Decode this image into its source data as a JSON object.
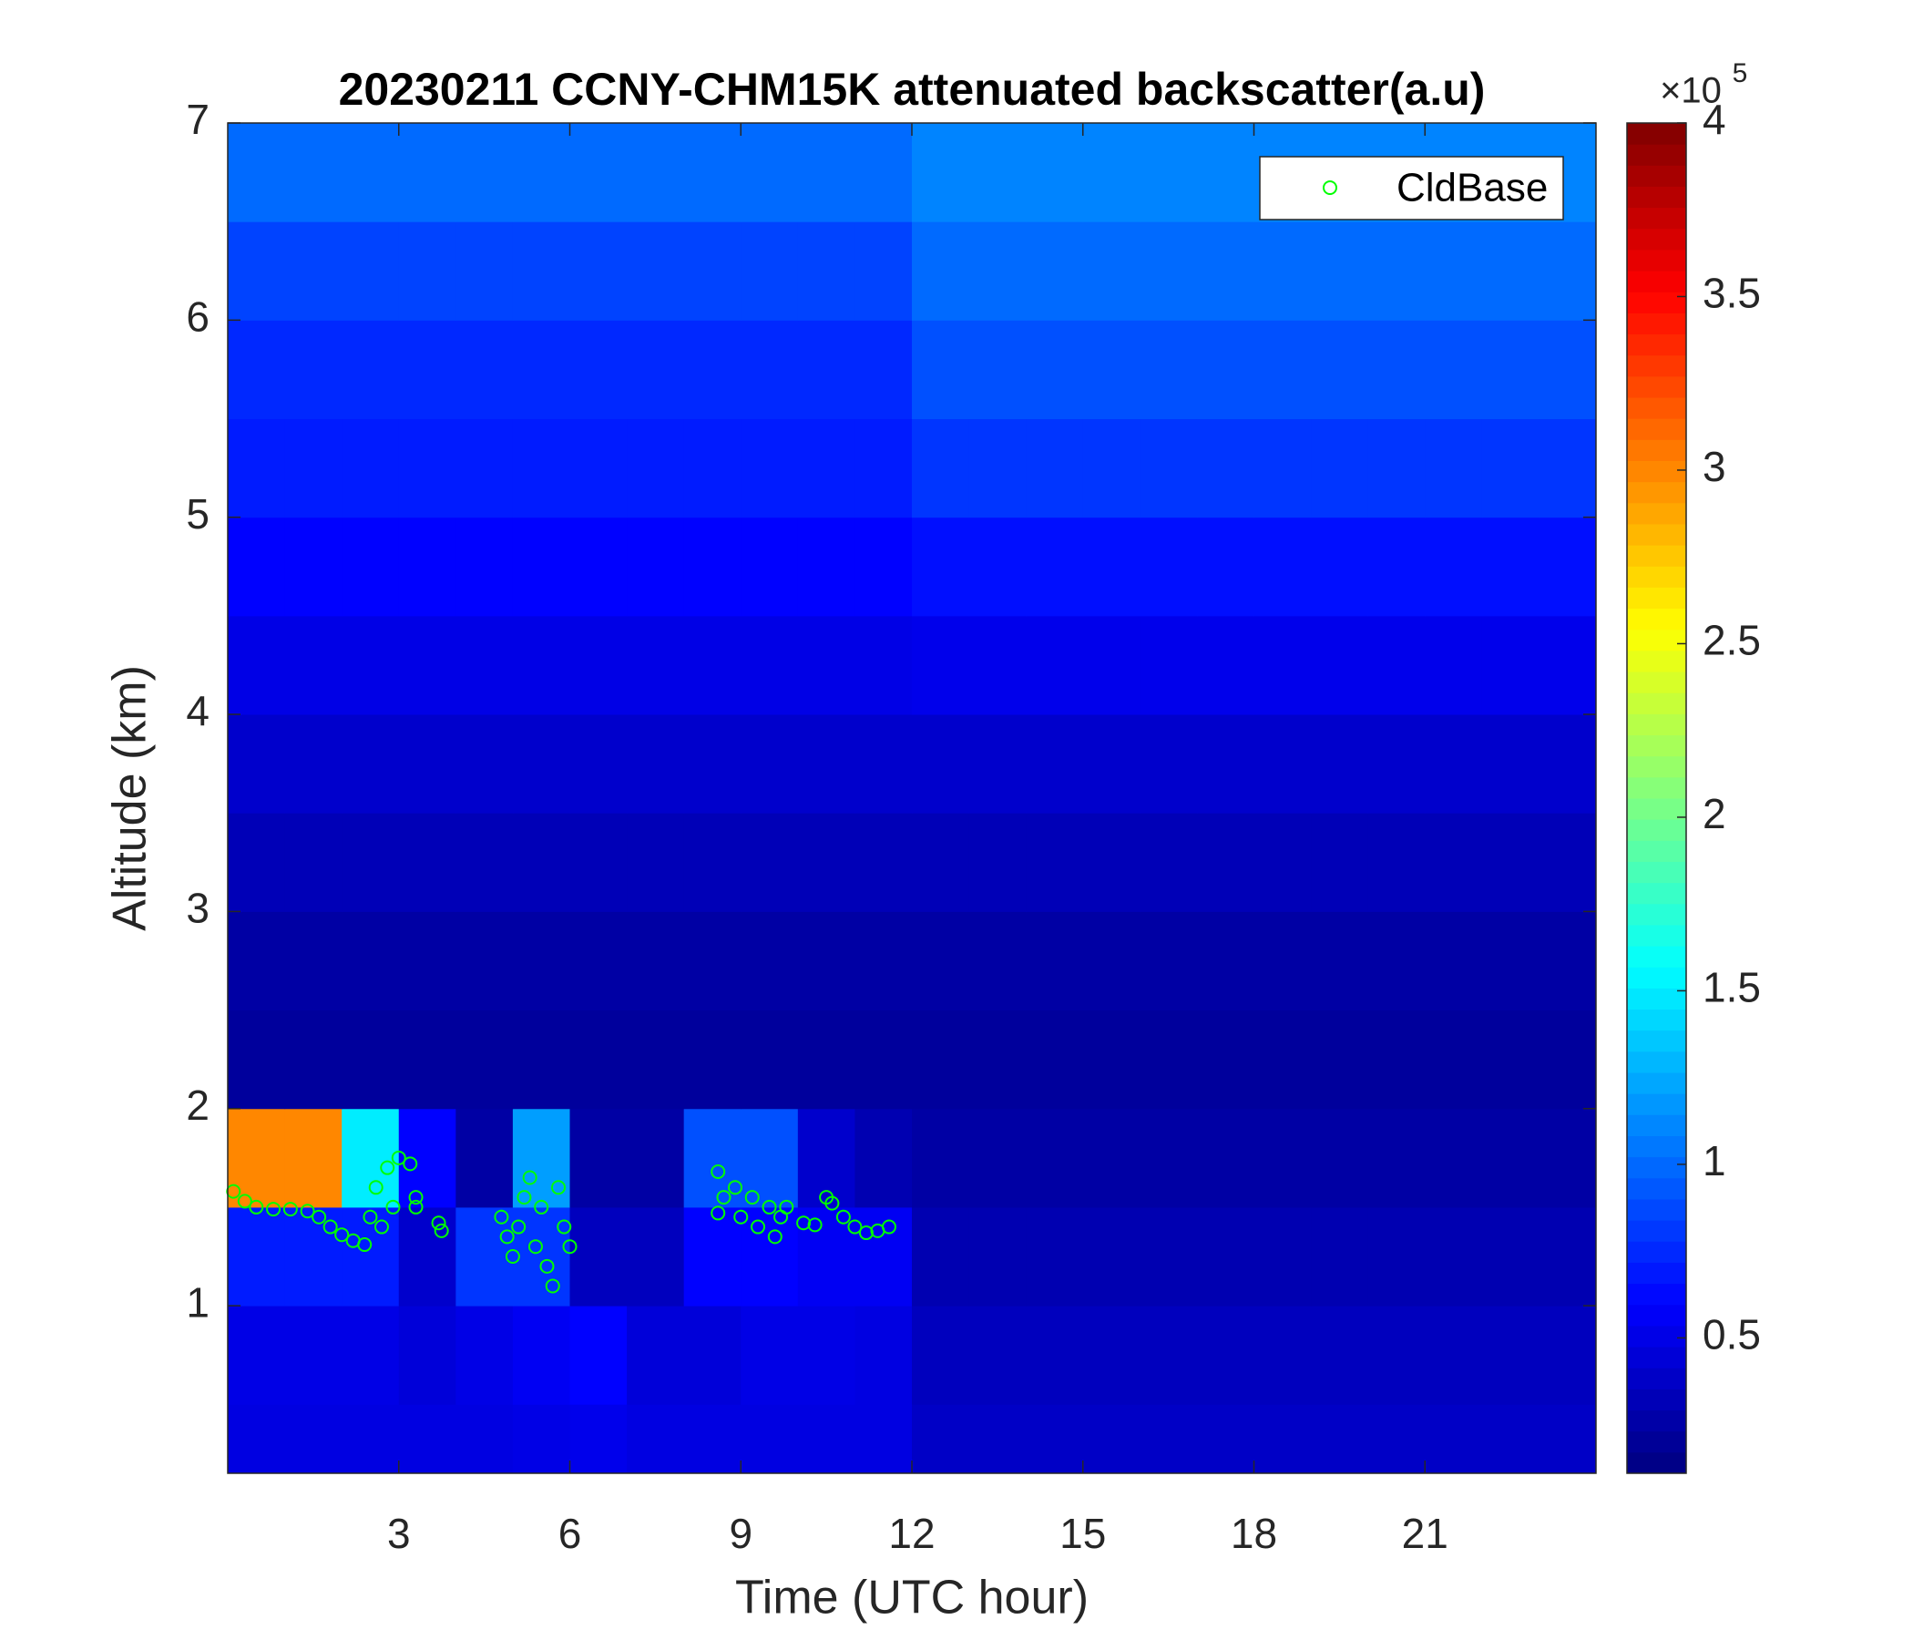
{
  "chart_data": {
    "type": "heatmap",
    "title": "20230211 CCNY-CHM15K attenuated backscatter(a.u)",
    "x_label": "Time (UTC hour)",
    "y_label": "Altitude (km)",
    "xlim": [
      0,
      24
    ],
    "ylim": [
      0.15,
      7
    ],
    "xticks": [
      3,
      6,
      9,
      12,
      15,
      18,
      21
    ],
    "yticks": [
      1,
      2,
      3,
      4,
      5,
      6,
      7
    ],
    "colormap": "jet",
    "clim": [
      11000,
      400000
    ],
    "colorbar_ticks": [
      {
        "value": 50000,
        "label": "0.5"
      },
      {
        "value": 100000,
        "label": "1"
      },
      {
        "value": 150000,
        "label": "1.5"
      },
      {
        "value": 200000,
        "label": "2"
      },
      {
        "value": 250000,
        "label": "2.5"
      },
      {
        "value": 300000,
        "label": "3"
      },
      {
        "value": 350000,
        "label": "3.5"
      },
      {
        "value": 400000,
        "label": "4"
      }
    ],
    "colorbar_multiplier": {
      "base": "×10",
      "exponent": "5"
    },
    "x_edges": [
      0,
      1,
      2,
      3,
      4,
      5,
      6,
      7,
      8,
      9,
      10,
      11,
      12,
      13,
      14,
      15,
      16,
      17,
      18,
      19,
      20,
      21,
      22,
      23,
      24
    ],
    "y_edges": [
      0.15,
      0.5,
      1,
      1.5,
      2,
      2.5,
      3,
      3.5,
      4,
      4.5,
      5,
      5.5,
      6,
      6.5,
      7
    ],
    "z": [
      [
        48000,
        48000,
        48000,
        48000,
        48000,
        50000,
        52000,
        48000,
        48000,
        48000,
        48000,
        48000,
        38000,
        38000,
        38000,
        38000,
        38000,
        38000,
        38000,
        38000,
        38000,
        38000,
        38000,
        38000
      ],
      [
        50000,
        50000,
        50000,
        45000,
        50000,
        55000,
        60000,
        45000,
        45000,
        50000,
        50000,
        48000,
        35000,
        35000,
        35000,
        35000,
        35000,
        35000,
        35000,
        35000,
        35000,
        35000,
        35000,
        35000
      ],
      [
        70000,
        70000,
        70000,
        40000,
        80000,
        80000,
        35000,
        35000,
        60000,
        60000,
        55000,
        55000,
        30000,
        30000,
        30000,
        30000,
        30000,
        30000,
        30000,
        30000,
        30000,
        30000,
        30000,
        30000
      ],
      [
        300000,
        300000,
        150000,
        60000,
        25000,
        120000,
        25000,
        25000,
        90000,
        90000,
        40000,
        30000,
        25000,
        25000,
        25000,
        25000,
        25000,
        25000,
        25000,
        25000,
        25000,
        25000,
        25000,
        25000
      ],
      [
        22000,
        22000,
        22000,
        22000,
        22000,
        22000,
        22000,
        22000,
        22000,
        22000,
        22000,
        22000,
        22000,
        22000,
        22000,
        22000,
        22000,
        22000,
        22000,
        22000,
        22000,
        22000,
        22000,
        22000
      ],
      [
        25000,
        25000,
        25000,
        25000,
        25000,
        25000,
        25000,
        25000,
        25000,
        25000,
        25000,
        25000,
        25000,
        25000,
        25000,
        25000,
        25000,
        25000,
        25000,
        25000,
        25000,
        25000,
        25000,
        25000
      ],
      [
        32000,
        32000,
        32000,
        32000,
        32000,
        32000,
        32000,
        32000,
        32000,
        32000,
        32000,
        32000,
        32000,
        32000,
        32000,
        32000,
        32000,
        32000,
        32000,
        32000,
        32000,
        32000,
        32000,
        32000
      ],
      [
        40000,
        40000,
        40000,
        40000,
        40000,
        40000,
        40000,
        40000,
        40000,
        40000,
        40000,
        40000,
        40000,
        40000,
        40000,
        40000,
        40000,
        40000,
        40000,
        40000,
        40000,
        40000,
        40000,
        40000
      ],
      [
        50000,
        50000,
        50000,
        50000,
        50000,
        50000,
        50000,
        50000,
        50000,
        50000,
        50000,
        50000,
        52000,
        52000,
        52000,
        52000,
        52000,
        52000,
        52000,
        52000,
        52000,
        52000,
        52000,
        52000
      ],
      [
        60000,
        60000,
        60000,
        60000,
        60000,
        60000,
        60000,
        60000,
        60000,
        60000,
        60000,
        60000,
        65000,
        65000,
        65000,
        65000,
        65000,
        65000,
        65000,
        65000,
        65000,
        65000,
        65000,
        65000
      ],
      [
        70000,
        70000,
        70000,
        70000,
        70000,
        70000,
        70000,
        70000,
        70000,
        70000,
        70000,
        70000,
        80000,
        80000,
        80000,
        80000,
        80000,
        80000,
        80000,
        80000,
        80000,
        80000,
        80000,
        80000
      ],
      [
        75000,
        75000,
        75000,
        75000,
        75000,
        75000,
        75000,
        75000,
        75000,
        75000,
        75000,
        75000,
        90000,
        90000,
        90000,
        90000,
        90000,
        90000,
        90000,
        90000,
        90000,
        90000,
        90000,
        90000
      ],
      [
        85000,
        85000,
        85000,
        85000,
        85000,
        85000,
        85000,
        85000,
        85000,
        85000,
        85000,
        85000,
        100000,
        100000,
        100000,
        100000,
        100000,
        100000,
        100000,
        100000,
        100000,
        100000,
        100000,
        100000
      ],
      [
        100000,
        100000,
        100000,
        100000,
        100000,
        100000,
        100000,
        100000,
        100000,
        100000,
        100000,
        100000,
        110000,
        110000,
        110000,
        110000,
        110000,
        110000,
        110000,
        110000,
        110000,
        110000,
        110000,
        110000
      ]
    ],
    "series": [
      {
        "name": "CldBase",
        "color": "#00ff00",
        "x": [
          0.1,
          0.3,
          0.5,
          0.8,
          1.1,
          1.4,
          1.6,
          1.8,
          2.0,
          2.2,
          2.4,
          2.5,
          2.6,
          2.8,
          3.0,
          3.2,
          3.3,
          2.7,
          2.9,
          3.3,
          3.7,
          3.75,
          4.8,
          4.9,
          5.0,
          5.1,
          5.2,
          5.3,
          5.4,
          5.5,
          5.6,
          5.7,
          5.8,
          5.9,
          6.0,
          8.6,
          8.7,
          8.6,
          8.9,
          9.0,
          9.2,
          9.3,
          9.5,
          9.6,
          9.7,
          9.8,
          10.1,
          10.3,
          10.5,
          10.6,
          10.8,
          11.0,
          11.2,
          11.4,
          11.6
        ],
        "y": [
          1.58,
          1.53,
          1.5,
          1.49,
          1.49,
          1.48,
          1.45,
          1.4,
          1.36,
          1.33,
          1.31,
          1.45,
          1.6,
          1.7,
          1.75,
          1.72,
          1.55,
          1.4,
          1.5,
          1.5,
          1.42,
          1.38,
          1.45,
          1.35,
          1.25,
          1.4,
          1.55,
          1.65,
          1.3,
          1.5,
          1.2,
          1.1,
          1.6,
          1.4,
          1.3,
          1.68,
          1.55,
          1.47,
          1.6,
          1.45,
          1.55,
          1.4,
          1.5,
          1.35,
          1.45,
          1.5,
          1.42,
          1.41,
          1.55,
          1.52,
          1.45,
          1.4,
          1.37,
          1.38,
          1.4
        ]
      }
    ],
    "legend_position": "northeast"
  }
}
